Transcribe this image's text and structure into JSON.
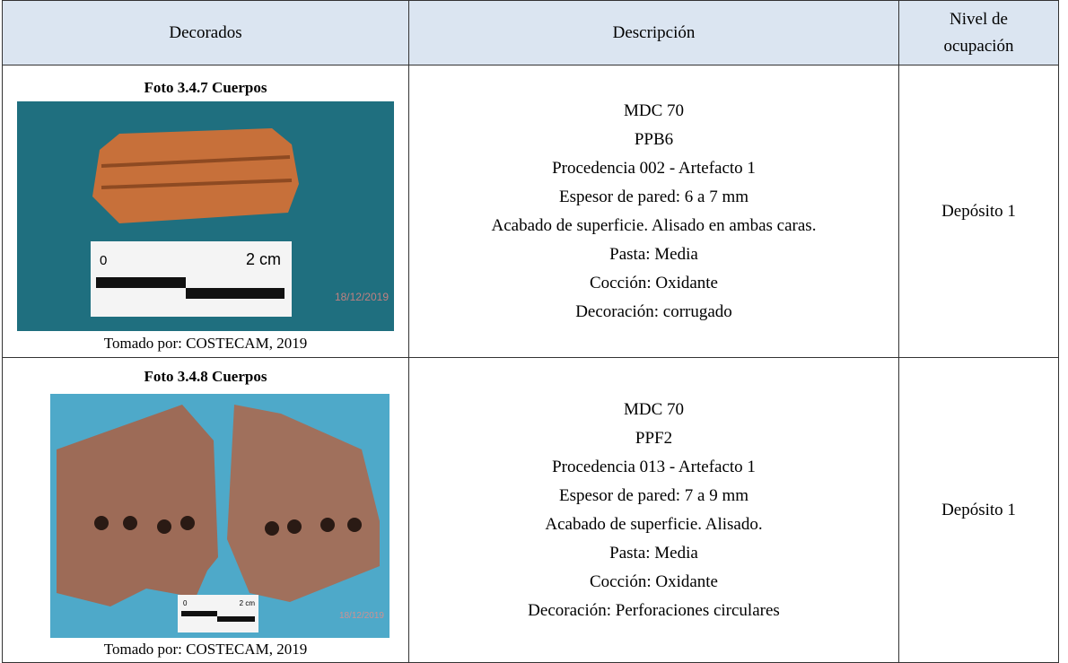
{
  "header": [
    "Decorados",
    "Descripción",
    "Nivel de ocupación"
  ],
  "rows": [
    {
      "caption": "Foto 3.4.7 Cuerpos",
      "photo": {
        "scale_zero": "0",
        "scale_unit": "2 cm",
        "date": "18/12/2019"
      },
      "credit": "Tomado por: COSTECAM, 2019",
      "description": [
        "MDC 70",
        "PPB6",
        "Procedencia 002 - Artefacto 1",
        "Espesor de pared: 6 a 7 mm",
        "Acabado de superficie. Alisado en ambas caras.",
        "Pasta: Media",
        "Cocción: Oxidante",
        "Decoración: corrugado"
      ],
      "level": "Depósito 1"
    },
    {
      "caption": "Foto 3.4.8 Cuerpos",
      "photo": {
        "scale_zero": "0",
        "scale_unit": "2 cm",
        "date": "18/12/2019"
      },
      "credit": "Tomado por: COSTECAM, 2019",
      "description": [
        "MDC 70",
        "PPF2",
        "Procedencia 013 - Artefacto 1",
        "Espesor de pared: 7 a 9 mm",
        "Acabado de superficie. Alisado.",
        "Pasta: Media",
        "Cocción: Oxidante",
        "Decoración: Perforaciones circulares"
      ],
      "level": "Depósito 1"
    }
  ]
}
